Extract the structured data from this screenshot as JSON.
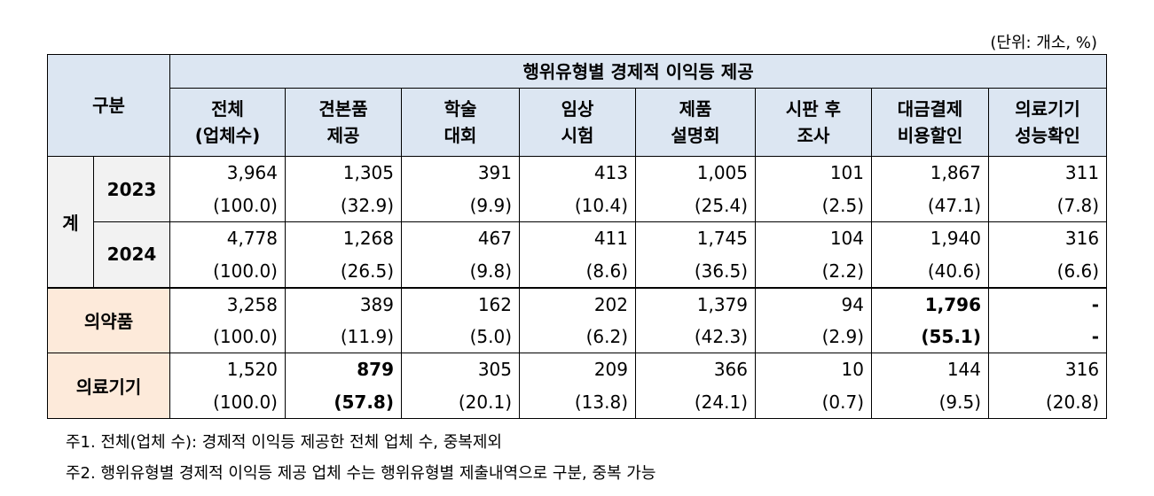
{
  "unit_note": "(단위: 개소, %)",
  "header": {
    "group": "구분",
    "super": "행위유형별 경제적 이익등 제공",
    "cols": [
      [
        "전체",
        "(업체수)"
      ],
      [
        "견본품",
        "제공"
      ],
      [
        "학술",
        "대회"
      ],
      [
        "임상",
        "시험"
      ],
      [
        "제품",
        "설명회"
      ],
      [
        "시판 후",
        "조사"
      ],
      [
        "대금결제",
        "비용할인"
      ],
      [
        "의료기기",
        "성능확인"
      ]
    ]
  },
  "total_label": "계",
  "rows": [
    {
      "label": "2023",
      "vals": [
        "3,964",
        "1,305",
        "391",
        "413",
        "1,005",
        "101",
        "1,867",
        "311"
      ],
      "pcts": [
        "(100.0)",
        "(32.9)",
        "(9.9)",
        "(10.4)",
        "(25.4)",
        "(2.5)",
        "(47.1)",
        "(7.8)"
      ]
    },
    {
      "label": "2024",
      "vals": [
        "4,778",
        "1,268",
        "467",
        "411",
        "1,745",
        "104",
        "1,940",
        "316"
      ],
      "pcts": [
        "(100.0)",
        "(26.5)",
        "(9.8)",
        "(8.6)",
        "(36.5)",
        "(2.2)",
        "(40.6)",
        "(6.6)"
      ]
    },
    {
      "label": "의약품",
      "vals": [
        "3,258",
        "389",
        "162",
        "202",
        "1,379",
        "94",
        "1,796",
        "-"
      ],
      "pcts": [
        "(100.0)",
        "(11.9)",
        "(5.0)",
        "(6.2)",
        "(42.3)",
        "(2.9)",
        "(55.1)",
        "-"
      ]
    },
    {
      "label": "의료기기",
      "vals": [
        "1,520",
        "879",
        "305",
        "209",
        "366",
        "10",
        "144",
        "316"
      ],
      "pcts": [
        "(100.0)",
        "(57.8)",
        "(20.1)",
        "(13.8)",
        "(24.1)",
        "(0.7)",
        "(9.5)",
        "(20.8)"
      ]
    }
  ],
  "notes": [
    "주1. 전체(업체 수): 경제적 이익등 제공한 전체 업체 수, 중복제외",
    "주2. 행위유형별 경제적 이익등 제공 업체 수는 행위유형별 제출내역으로 구분, 중복 가능"
  ]
}
